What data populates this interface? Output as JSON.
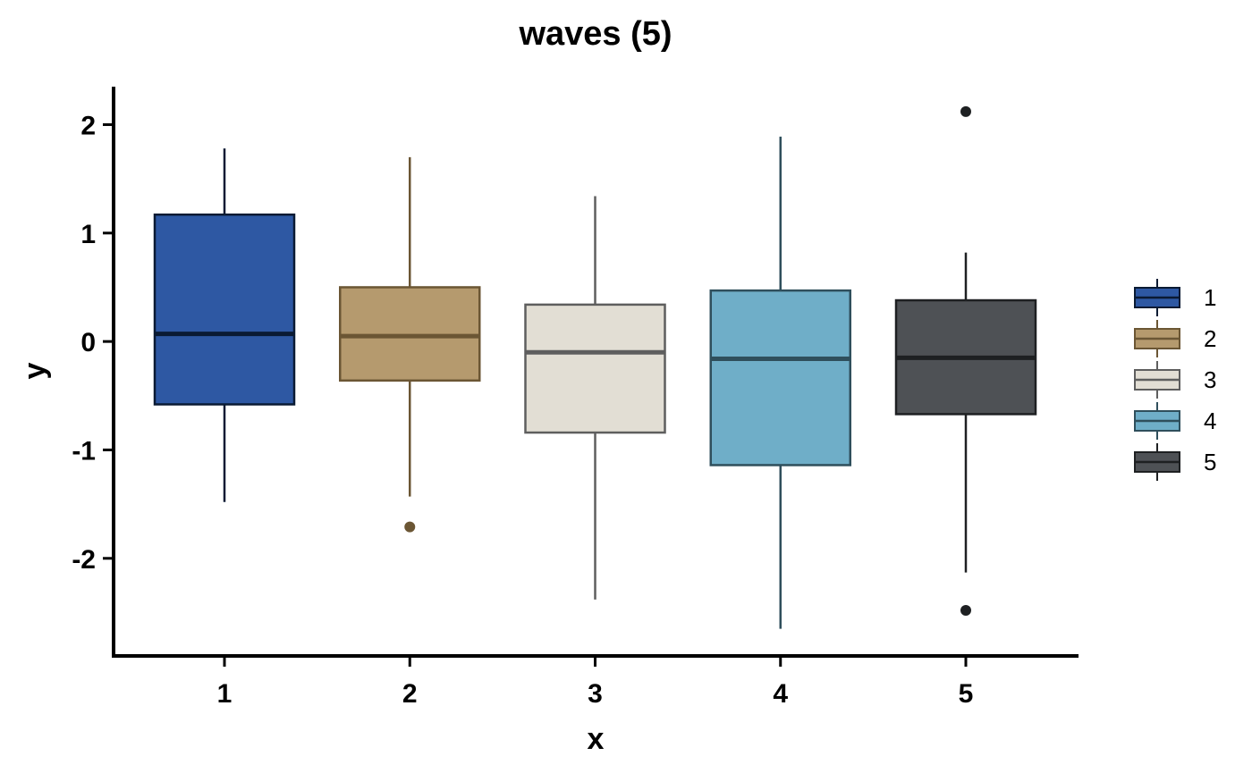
{
  "chart_data": {
    "type": "box",
    "title": "waves (5)",
    "xlabel": "x",
    "ylabel": "y",
    "categories": [
      "1",
      "2",
      "3",
      "4",
      "5"
    ],
    "ylim": [
      -2.9,
      2.35
    ],
    "yticks": [
      2,
      1,
      0,
      -1,
      -2
    ],
    "ytick_labels": [
      "2",
      "1",
      "0",
      "-1",
      "-2"
    ],
    "grid": false,
    "legend_position": "right",
    "series": [
      {
        "name": "1",
        "color": "#2E58A3",
        "line": "#0A1A33",
        "whisker_low": -1.48,
        "q1": -0.58,
        "median": 0.07,
        "q3": 1.17,
        "whisker_high": 1.78,
        "outliers": []
      },
      {
        "name": "2",
        "color": "#B59A6E",
        "line": "#6B5634",
        "whisker_low": -1.43,
        "q1": -0.36,
        "median": 0.05,
        "q3": 0.5,
        "whisker_high": 1.7,
        "outliers": [
          -1.71
        ]
      },
      {
        "name": "3",
        "color": "#E2DED4",
        "line": "#5E5E5E",
        "whisker_low": -2.38,
        "q1": -0.84,
        "median": -0.1,
        "q3": 0.34,
        "whisker_high": 1.34,
        "outliers": []
      },
      {
        "name": "4",
        "color": "#6FAEC8",
        "line": "#2F4F5C",
        "whisker_low": -2.65,
        "q1": -1.14,
        "median": -0.16,
        "q3": 0.47,
        "whisker_high": 1.89,
        "outliers": []
      },
      {
        "name": "5",
        "color": "#4E5155",
        "line": "#1E2022",
        "whisker_low": -2.13,
        "q1": -0.67,
        "median": -0.15,
        "q3": 0.38,
        "whisker_high": 0.82,
        "outliers": [
          2.12,
          -2.48
        ]
      }
    ]
  }
}
